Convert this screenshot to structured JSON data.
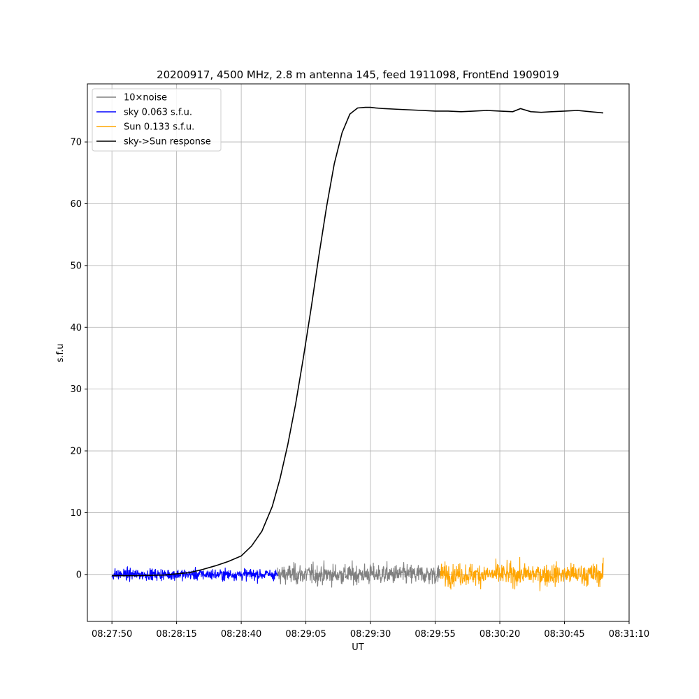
{
  "chart_data": {
    "type": "line",
    "title": "20200917, 4500 MHz, 2.8 m antenna 145, feed 1911098, FrontEnd 1909019",
    "xlabel": "UT",
    "ylabel": "s.f.u",
    "xlim": [
      "08:27:40.5",
      "08:31:10"
    ],
    "ylim": [
      -7.6,
      79.4
    ],
    "x_ticks": [
      "08:27:50",
      "08:28:15",
      "08:28:40",
      "08:29:05",
      "08:29:30",
      "08:29:55",
      "08:30:20",
      "08:30:45",
      "08:31:10"
    ],
    "y_ticks": [
      0,
      10,
      20,
      30,
      40,
      50,
      60,
      70
    ],
    "grid": true,
    "legend_position": "upper-left",
    "series": [
      {
        "name": "10×noise",
        "color": "#808080",
        "kind": "noise",
        "x_range": [
          "08:28:54",
          "08:29:57"
        ],
        "amplitude": 3.5
      },
      {
        "name": "sky 0.063 s.f.u.",
        "color": "#0000ff",
        "kind": "noise",
        "x_range": [
          "08:27:50",
          "08:28:54"
        ],
        "amplitude": 2.0
      },
      {
        "name": "Sun 0.133 s.f.u.",
        "color": "#ffa500",
        "kind": "noise",
        "x_range": [
          "08:29:57",
          "08:31:00"
        ],
        "amplitude": 3.8
      },
      {
        "name": "sky->Sun response",
        "color": "#000000",
        "kind": "line",
        "x": [
          "08:27:50",
          "08:28:00",
          "08:28:10",
          "08:28:20",
          "08:28:25",
          "08:28:30",
          "08:28:35",
          "08:28:40",
          "08:28:44",
          "08:28:48",
          "08:28:52",
          "08:28:55",
          "08:28:58",
          "08:29:01",
          "08:29:04",
          "08:29:07",
          "08:29:10",
          "08:29:13",
          "08:29:16",
          "08:29:19",
          "08:29:22",
          "08:29:25",
          "08:29:28",
          "08:29:30",
          "08:29:32",
          "08:29:35",
          "08:29:40",
          "08:29:45",
          "08:29:50",
          "08:29:55",
          "08:30:00",
          "08:30:05",
          "08:30:10",
          "08:30:15",
          "08:30:20",
          "08:30:25",
          "08:30:28",
          "08:30:32",
          "08:30:36",
          "08:30:40",
          "08:30:45",
          "08:30:50",
          "08:30:55",
          "08:31:00"
        ],
        "y": [
          -0.2,
          -0.2,
          -0.1,
          0.3,
          0.8,
          1.4,
          2.1,
          3.0,
          4.6,
          7.0,
          11.0,
          15.5,
          21.0,
          27.5,
          35.0,
          43.0,
          51.5,
          59.5,
          66.5,
          71.5,
          74.5,
          75.5,
          75.6,
          75.6,
          75.5,
          75.4,
          75.3,
          75.2,
          75.1,
          75.0,
          75.0,
          74.9,
          75.0,
          75.1,
          75.0,
          74.9,
          75.4,
          74.9,
          74.8,
          74.9,
          75.0,
          75.1,
          74.9,
          74.7
        ]
      }
    ]
  }
}
